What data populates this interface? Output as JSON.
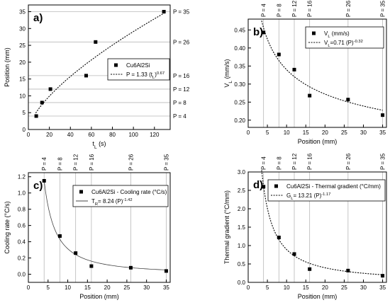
{
  "chart_data": [
    {
      "type": "scatter",
      "panel_label": "a)",
      "xlabel": "t",
      "xlabel_sub": "L",
      "xlabel_unit": " (s)",
      "ylabel": "Position (mm)",
      "xlim": [
        0,
        135
      ],
      "ylim": [
        0,
        37
      ],
      "xticks": [
        0,
        20,
        40,
        60,
        80,
        100,
        120
      ],
      "yticks": [
        0,
        5,
        10,
        15,
        20,
        25,
        30,
        35
      ],
      "xtick_labels": [
        "0",
        "20",
        "40",
        "60",
        "80",
        "100",
        "120"
      ],
      "ytick_labels": [
        "0",
        "5",
        "10",
        "15",
        "20",
        "25",
        "30",
        "35"
      ],
      "guides": {
        "orientation": "horizontal",
        "values": [
          4,
          8,
          12,
          16,
          26,
          35
        ],
        "labels": [
          "P = 4",
          "P = 8",
          "P = 12",
          "P = 16",
          "P = 26",
          "P = 35"
        ]
      },
      "series": [
        {
          "name": "Cu6Al2Si",
          "marker": "square",
          "x": [
            7.5,
            13,
            21,
            55,
            64,
            129
          ],
          "y": [
            4,
            8,
            12,
            16,
            26,
            35
          ]
        }
      ],
      "fit": {
        "label_parts": [
          {
            "text": "P = 1.33 (t"
          },
          {
            "text": "L",
            "sub": true
          },
          {
            "text": ")"
          },
          {
            "text": "0.67",
            "sup": true
          }
        ],
        "style": "dotted",
        "x_range": [
          7,
          129
        ],
        "coef": 1.33,
        "exp": 0.67
      },
      "legend_position": "right"
    },
    {
      "type": "scatter",
      "panel_label": "b)",
      "xlabel": "Position (mm)",
      "ylabel": "V",
      "ylabel_sub": "L",
      "ylabel_unit": " (mm/s)",
      "xlim": [
        0,
        36
      ],
      "ylim": [
        0.18,
        0.48
      ],
      "xticks": [
        0,
        5,
        10,
        15,
        20,
        25,
        30,
        35
      ],
      "yticks": [
        0.2,
        0.25,
        0.3,
        0.35,
        0.4,
        0.45
      ],
      "xtick_labels": [
        "0",
        "5",
        "10",
        "15",
        "20",
        "25",
        "30",
        "35"
      ],
      "ytick_labels": [
        "0.20",
        "0.25",
        "0.30",
        "0.35",
        "0.40",
        "0.45"
      ],
      "guides": {
        "orientation": "vertical",
        "values": [
          4,
          8,
          12,
          16,
          26,
          35
        ],
        "labels": [
          "P = 4",
          "P = 8",
          "P = 12",
          "P = 16",
          "P = 26",
          "P = 35"
        ]
      },
      "series": [
        {
          "name_parts": [
            {
              "text": "V"
            },
            {
              "text": "L",
              "sub": true
            },
            {
              "text": " (mm/s)"
            }
          ],
          "marker": "square",
          "x": [
            4,
            8,
            12,
            16,
            26,
            35
          ],
          "y": [
            0.443,
            0.382,
            0.34,
            0.268,
            0.257,
            0.214
          ]
        }
      ],
      "fit": {
        "label_parts": [
          {
            "text": "V"
          },
          {
            "text": "L",
            "sub": true
          },
          {
            "text": "=0.71 (P)"
          },
          {
            "text": "-0.32",
            "sup": true
          }
        ],
        "style": "dotted",
        "x_range": [
          3.5,
          35
        ],
        "coef": 0.71,
        "exp": -0.32
      },
      "legend_position": "top-right"
    },
    {
      "type": "scatter",
      "panel_label": "c)",
      "xlabel": "Position (mm)",
      "ylabel": "Cooling rate (°C/s)",
      "xlim": [
        0,
        36
      ],
      "ylim": [
        -0.1,
        1.25
      ],
      "xticks": [
        0,
        5,
        10,
        15,
        20,
        25,
        30,
        35
      ],
      "yticks": [
        0.0,
        0.2,
        0.4,
        0.6,
        0.8,
        1.0,
        1.2
      ],
      "xtick_labels": [
        "0",
        "5",
        "10",
        "15",
        "20",
        "25",
        "30",
        "35"
      ],
      "ytick_labels": [
        "0.0",
        "0.2",
        "0.4",
        "0.6",
        "0.8",
        "1.0",
        "1.2"
      ],
      "guides": {
        "orientation": "vertical",
        "values": [
          4,
          8,
          12,
          16,
          26,
          35
        ],
        "labels": [
          "P = 4",
          "P = 8",
          "P = 12",
          "P = 16",
          "P = 26",
          "P = 35"
        ]
      },
      "series": [
        {
          "name": "Cu6Al2Si - Cooling rate (°C/s)",
          "marker": "square",
          "x": [
            4,
            8,
            12,
            16,
            26,
            35
          ],
          "y": [
            1.15,
            0.47,
            0.26,
            0.1,
            0.08,
            0.04
          ]
        }
      ],
      "fit": {
        "label_parts": [
          {
            "text": "T"
          },
          {
            "text": "R",
            "sub": true
          },
          {
            "text": "= 8.24 (P)"
          },
          {
            "text": "-1.42",
            "sup": true
          }
        ],
        "style": "solid",
        "x_range": [
          4,
          35
        ],
        "coef": 8.24,
        "exp": -1.42
      },
      "legend_position": "top-right"
    },
    {
      "type": "scatter",
      "panel_label": "d)",
      "xlabel": "Position (mm)",
      "ylabel": "Thermal gradient (°C/mm)",
      "xlim": [
        0,
        36
      ],
      "ylim": [
        0,
        3
      ],
      "xticks": [
        0,
        5,
        10,
        15,
        20,
        25,
        30,
        35
      ],
      "yticks": [
        0.0,
        0.5,
        1.0,
        1.5,
        2.0,
        2.5,
        3.0
      ],
      "xtick_labels": [
        "0",
        "5",
        "10",
        "15",
        "20",
        "25",
        "30",
        "35"
      ],
      "ytick_labels": [
        "0.0",
        "0.5",
        "1.0",
        "1.5",
        "2.0",
        "2.5",
        "3.0"
      ],
      "guides": {
        "orientation": "vertical",
        "values": [
          4,
          8,
          12,
          16,
          26,
          35
        ],
        "labels": [
          "P = 4",
          "P = 8",
          "P = 12",
          "P = 16",
          "P = 26",
          "P = 35"
        ]
      },
      "series": [
        {
          "name": "Cu6Al2Si - Thermal gradient  (°C/mm)",
          "marker": "square",
          "x": [
            4,
            8,
            12,
            16,
            26,
            35
          ],
          "y": [
            2.6,
            1.22,
            0.77,
            0.36,
            0.32,
            0.18
          ]
        }
      ],
      "fit": {
        "label_parts": [
          {
            "text": "G"
          },
          {
            "text": "L",
            "sub": true
          },
          {
            "text": "= 13.21 (P)"
          },
          {
            "text": "-1.17",
            "sup": true
          }
        ],
        "style": "dotted",
        "x_range": [
          3.5,
          35
        ],
        "coef": 13.21,
        "exp": -1.17
      },
      "legend_position": "top-right"
    }
  ]
}
